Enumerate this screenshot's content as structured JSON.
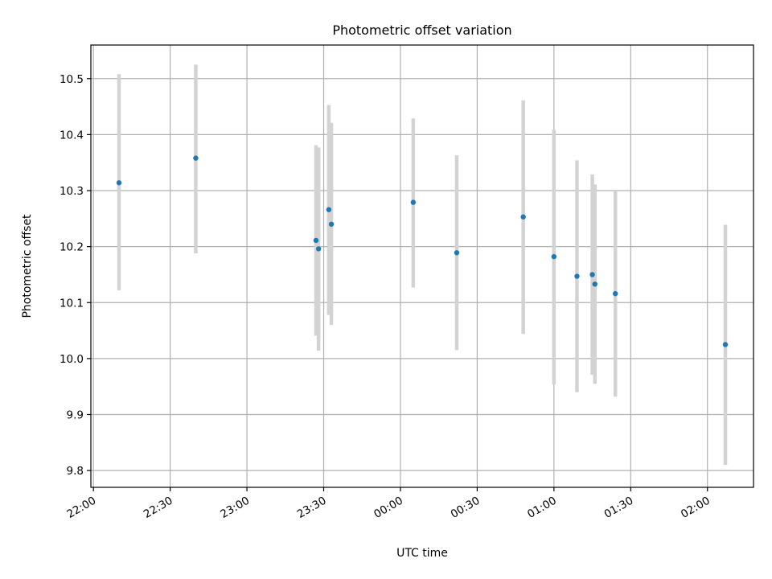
{
  "chart_data": {
    "type": "scatter",
    "title": "Photometric offset variation",
    "xlabel": "UTC time",
    "ylabel": "Photometric offset",
    "x_tick_labels": [
      "22:00",
      "22:30",
      "23:00",
      "23:30",
      "00:00",
      "00:30",
      "01:00",
      "01:30",
      "02:00"
    ],
    "y_ticks": [
      9.8,
      9.9,
      10.0,
      10.1,
      10.2,
      10.3,
      10.4,
      10.5
    ],
    "y_tick_labels": [
      "9.8",
      "9.9",
      "10.0",
      "10.1",
      "10.2",
      "10.3",
      "10.4",
      "10.5"
    ],
    "xlim": [
      "21:59",
      "02:18"
    ],
    "ylim": [
      9.77,
      10.56
    ],
    "grid": true,
    "colors": {
      "point": "#1f77b4",
      "errorbar": "#d3d3d3",
      "grid": "#b0b0b0"
    },
    "points": [
      {
        "x": "22:10",
        "y": 10.314,
        "low": 10.122,
        "high": 10.508
      },
      {
        "x": "22:40",
        "y": 10.358,
        "low": 10.188,
        "high": 10.525
      },
      {
        "x": "23:27",
        "y": 10.211,
        "low": 10.041,
        "high": 10.381
      },
      {
        "x": "23:28",
        "y": 10.196,
        "low": 10.014,
        "high": 10.377
      },
      {
        "x": "23:32",
        "y": 10.266,
        "low": 10.078,
        "high": 10.453
      },
      {
        "x": "23:33",
        "y": 10.24,
        "low": 10.06,
        "high": 10.421
      },
      {
        "x": "00:05",
        "y": 10.279,
        "low": 10.127,
        "high": 10.429
      },
      {
        "x": "00:22",
        "y": 10.189,
        "low": 10.015,
        "high": 10.363
      },
      {
        "x": "00:48",
        "y": 10.253,
        "low": 10.044,
        "high": 10.461
      },
      {
        "x": "01:00",
        "y": 10.182,
        "low": 9.954,
        "high": 10.409
      },
      {
        "x": "01:09",
        "y": 10.147,
        "low": 9.94,
        "high": 10.354
      },
      {
        "x": "01:15",
        "y": 10.15,
        "low": 9.971,
        "high": 10.329
      },
      {
        "x": "01:16",
        "y": 10.133,
        "low": 9.955,
        "high": 10.311
      },
      {
        "x": "01:24",
        "y": 10.116,
        "low": 9.932,
        "high": 10.3
      },
      {
        "x": "02:07",
        "y": 10.025,
        "low": 9.81,
        "high": 10.239
      }
    ]
  }
}
